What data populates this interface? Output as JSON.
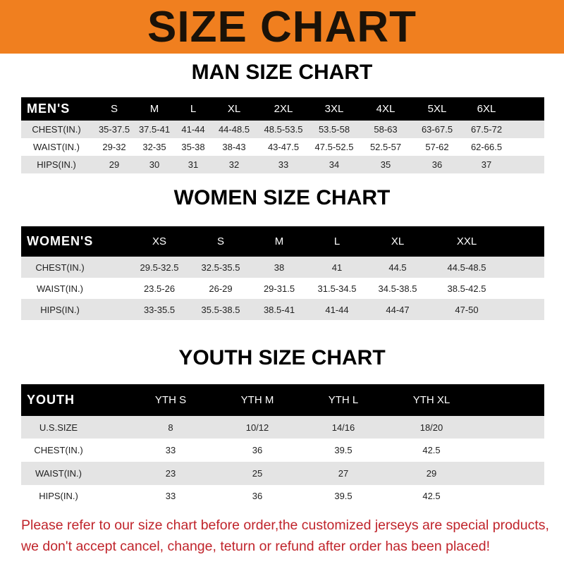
{
  "banner_title": "SIZE CHART",
  "men": {
    "title": "MAN SIZE CHART",
    "header": [
      "MEN'S",
      "S",
      "M",
      "L",
      "XL",
      "2XL",
      "3XL",
      "4XL",
      "5XL",
      "6XL"
    ],
    "rows": [
      [
        "CHEST(IN.)",
        "35-37.5",
        "37.5-41",
        "41-44",
        "44-48.5",
        "48.5-53.5",
        "53.5-58",
        "58-63",
        "63-67.5",
        "67.5-72"
      ],
      [
        "WAIST(IN.)",
        "29-32",
        "32-35",
        "35-38",
        "38-43",
        "43-47.5",
        "47.5-52.5",
        "52.5-57",
        "57-62",
        "62-66.5"
      ],
      [
        "HIPS(IN.)",
        "29",
        "30",
        "31",
        "32",
        "33",
        "34",
        "35",
        "36",
        "37"
      ]
    ]
  },
  "women": {
    "title": "WOMEN SIZE CHART",
    "header": [
      "WOMEN'S",
      "XS",
      "S",
      "M",
      "L",
      "XL",
      "XXL"
    ],
    "rows": [
      [
        "CHEST(IN.)",
        "29.5-32.5",
        "32.5-35.5",
        "38",
        "41",
        "44.5",
        "44.5-48.5"
      ],
      [
        "WAIST(IN.)",
        "23.5-26",
        "26-29",
        "29-31.5",
        "31.5-34.5",
        "34.5-38.5",
        "38.5-42.5"
      ],
      [
        "HIPS(IN.)",
        "33-35.5",
        "35.5-38.5",
        "38.5-41",
        "41-44",
        "44-47",
        "47-50"
      ]
    ]
  },
  "youth": {
    "title": "YOUTH SIZE CHART",
    "header": [
      "YOUTH",
      "YTH S",
      "YTH M",
      "YTH L",
      "YTH XL"
    ],
    "rows": [
      [
        "U.S.SIZE",
        "8",
        "10/12",
        "14/16",
        "18/20"
      ],
      [
        "CHEST(IN.)",
        "33",
        "36",
        "39.5",
        "42.5"
      ],
      [
        "WAIST(IN.)",
        "23",
        "25",
        "27",
        "29"
      ],
      [
        "HIPS(IN.)",
        "33",
        "36",
        "39.5",
        "42.5"
      ]
    ]
  },
  "footer": [
    "Please refer to our size chart before order,the customized jerseys are special products,",
    "we don't accept cancel, change, teturn or refund after order has been placed!"
  ],
  "colors": {
    "banner": "#f07f1f",
    "header_row": "#000000",
    "shaded_row": "#e4e4e4",
    "footer_text": "#c0242b"
  }
}
